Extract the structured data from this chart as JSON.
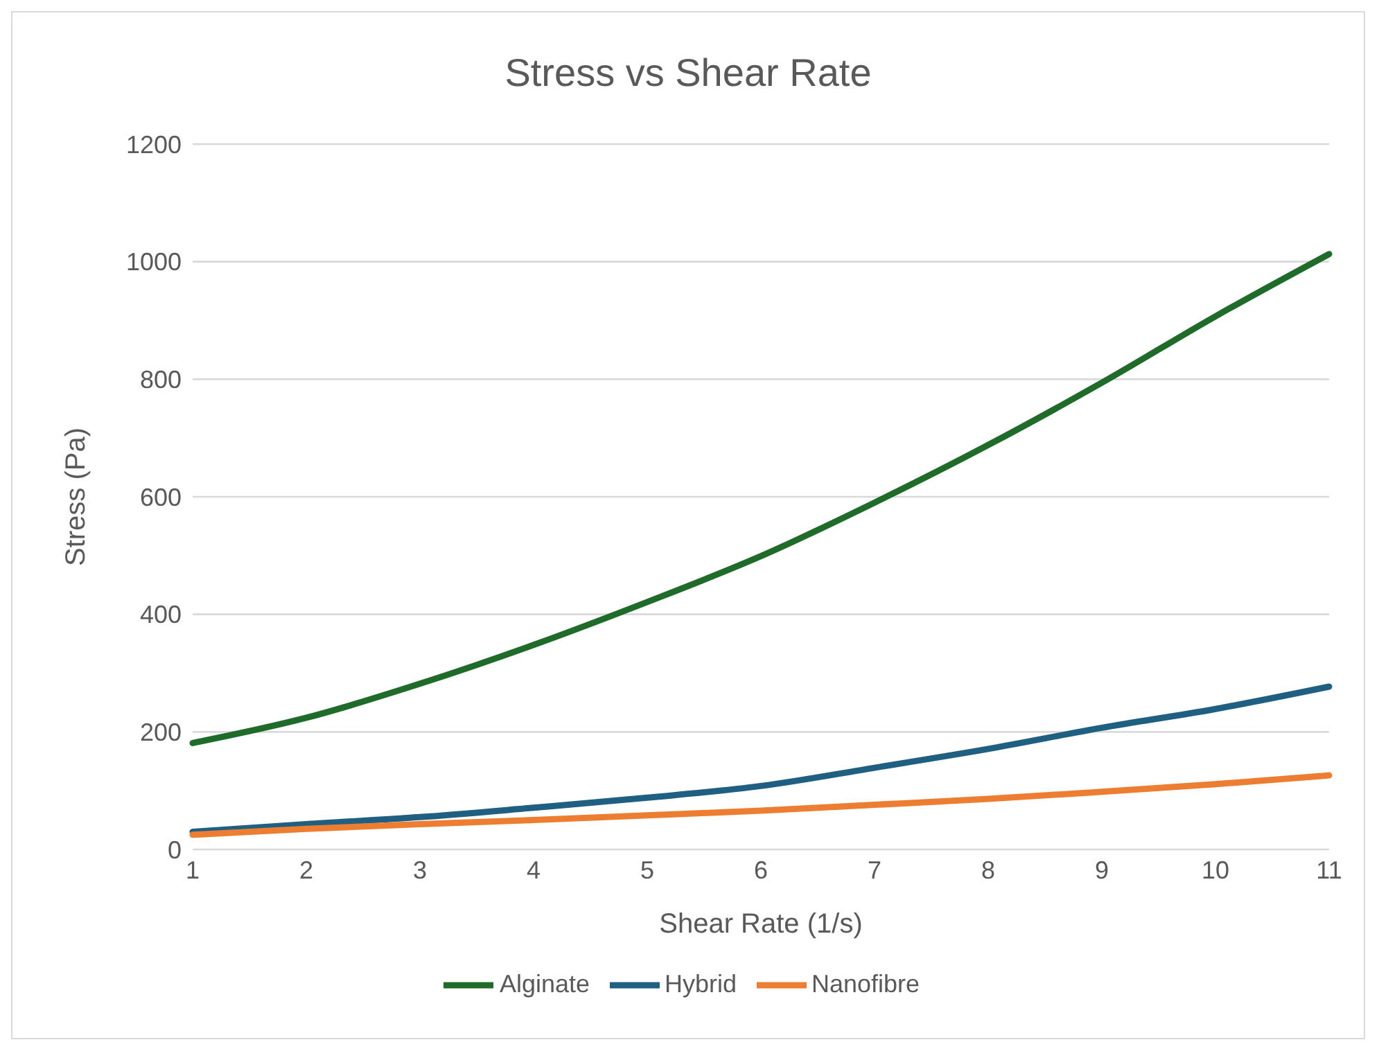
{
  "chart_data": {
    "type": "line",
    "title": "Stress vs Shear Rate",
    "xlabel": "Shear Rate (1/s)",
    "ylabel": "Stress (Pa)",
    "categories": [
      "1",
      "2",
      "3",
      "4",
      "5",
      "6",
      "7",
      "8",
      "9",
      "10",
      "11"
    ],
    "series": [
      {
        "name": "Hybrid",
        "color": "#1f5f82",
        "values": [
          30,
          43,
          55,
          71,
          88,
          108,
          139,
          171,
          207,
          239,
          277
        ]
      },
      {
        "name": "Nanofibre",
        "color": "#ed7d31",
        "values": [
          25,
          35,
          43,
          50,
          58,
          66,
          76,
          86,
          98,
          111,
          126
        ]
      },
      {
        "name": "Alginate",
        "color": "#1e6b2a",
        "values": [
          181,
          224,
          282,
          348,
          421,
          499,
          590,
          688,
          794,
          907,
          1013
        ]
      }
    ],
    "ylim": [
      0,
      1200
    ],
    "yticks": [
      0,
      200,
      400,
      600,
      800,
      1000,
      1200
    ],
    "grid": "y",
    "legend": "bottom",
    "marker": "none",
    "line_style": "solid"
  }
}
